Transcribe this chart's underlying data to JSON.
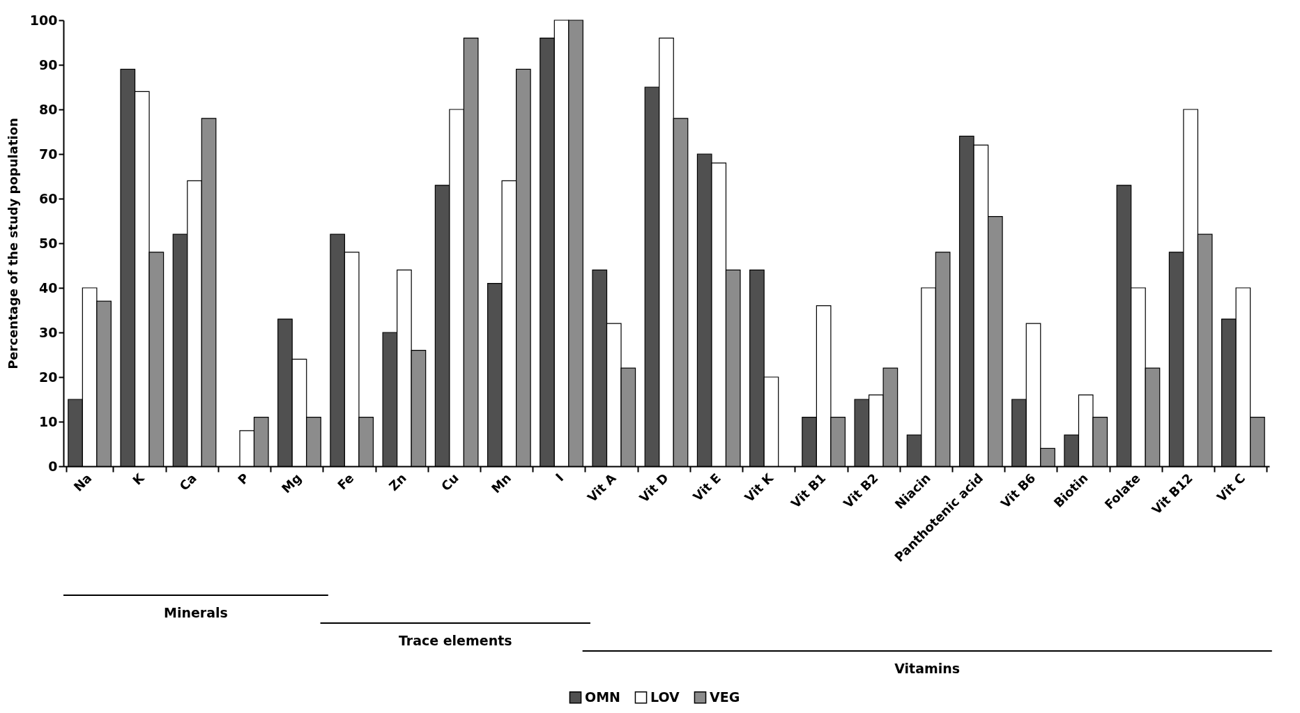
{
  "chart_data": {
    "type": "bar",
    "ylabel": "Percentage of the study population",
    "categories": [
      "Na",
      "K",
      "Ca",
      "P",
      "Mg",
      "Fe",
      "Zn",
      "Cu",
      "Mn",
      "I",
      "Vit A",
      "Vit D",
      "Vit E",
      "Vit K",
      "Vit B1",
      "Vit B2",
      "Niacin",
      "Panthotenic acid",
      "Vit B6",
      "Biotin",
      "Folate",
      "Vit B12",
      "Vit C"
    ],
    "series": [
      {
        "name": "OMN",
        "color": "#505050",
        "values": [
          15,
          89,
          52,
          0,
          33,
          52,
          30,
          63,
          41,
          96,
          44,
          85,
          70,
          44,
          11,
          15,
          7,
          74,
          15,
          7,
          63,
          48,
          33
        ]
      },
      {
        "name": "LOV",
        "color": "#ffffff",
        "values": [
          40,
          84,
          64,
          8,
          24,
          48,
          44,
          80,
          64,
          100,
          32,
          96,
          68,
          20,
          36,
          16,
          40,
          72,
          32,
          16,
          40,
          80,
          40
        ]
      },
      {
        "name": "VEG",
        "color": "#8c8c8c",
        "values": [
          37,
          48,
          78,
          11,
          11,
          11,
          26,
          96,
          89,
          100,
          22,
          78,
          44,
          0,
          11,
          22,
          48,
          56,
          4,
          11,
          22,
          52,
          11
        ]
      }
    ],
    "ylim": [
      0,
      100
    ],
    "yticks": [
      0,
      10,
      20,
      30,
      40,
      50,
      60,
      70,
      80,
      90,
      100
    ],
    "grid": false,
    "legend": "bottom",
    "annotations": [
      "Minerals",
      "Trace elements",
      "Vitamins"
    ]
  }
}
